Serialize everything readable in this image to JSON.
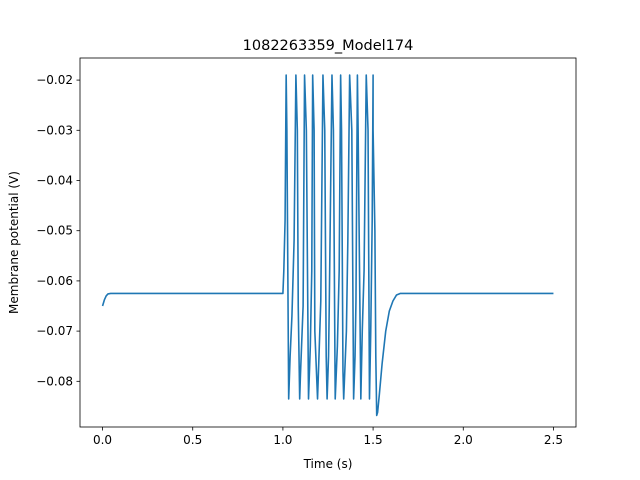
{
  "chart_data": {
    "type": "line",
    "title": "1082263359_Model174",
    "xlabel": "Time (s)",
    "ylabel": "Membrane potential (V)",
    "xlim": [
      -0.125,
      2.625
    ],
    "ylim": [
      -0.0891,
      -0.0156
    ],
    "xticks": [
      0.0,
      0.5,
      1.0,
      1.5,
      2.0,
      2.5
    ],
    "xtick_labels": [
      "0.0",
      "0.5",
      "1.0",
      "1.5",
      "2.0",
      "2.5"
    ],
    "yticks": [
      -0.08,
      -0.07,
      -0.06,
      -0.05,
      -0.04,
      -0.03,
      -0.02
    ],
    "ytick_labels": [
      "−0.08",
      "−0.07",
      "−0.06",
      "−0.05",
      "−0.04",
      "−0.03",
      "−0.02"
    ],
    "grid": false,
    "line_color": "#1f77b4",
    "series": [
      {
        "x": [
          0.0,
          0.01,
          0.02,
          0.03,
          0.045,
          0.06,
          0.1,
          0.5,
          1.0,
          1.005,
          1.012,
          1.018,
          1.022,
          1.032,
          1.04,
          1.05,
          1.062,
          1.072,
          1.08,
          1.085,
          1.093,
          1.097,
          1.112,
          1.12,
          1.13,
          1.142,
          1.152,
          1.16,
          1.165,
          1.173,
          1.177,
          1.192,
          1.2,
          1.21,
          1.222,
          1.232,
          1.24,
          1.245,
          1.253,
          1.257,
          1.272,
          1.28,
          1.29,
          1.302,
          1.312,
          1.32,
          1.325,
          1.333,
          1.337,
          1.352,
          1.36,
          1.37,
          1.382,
          1.392,
          1.4,
          1.405,
          1.413,
          1.417,
          1.432,
          1.44,
          1.45,
          1.462,
          1.472,
          1.48,
          1.487,
          1.495,
          1.5,
          1.5,
          1.51,
          1.515,
          1.52,
          1.525,
          1.535,
          1.55,
          1.57,
          1.59,
          1.61,
          1.63,
          1.65,
          1.7,
          2.0,
          2.5
        ],
        "y": [
          -0.065,
          -0.0638,
          -0.063,
          -0.0626,
          -0.0625,
          -0.0625,
          -0.0625,
          -0.0625,
          -0.0625,
          -0.058,
          -0.048,
          -0.019,
          -0.03,
          -0.0835,
          -0.075,
          -0.067,
          -0.052,
          -0.019,
          -0.03,
          -0.065,
          -0.0835,
          -0.079,
          -0.065,
          -0.019,
          -0.03,
          -0.0835,
          -0.073,
          -0.058,
          -0.019,
          -0.03,
          -0.07,
          -0.0835,
          -0.075,
          -0.064,
          -0.019,
          -0.03,
          -0.075,
          -0.0835,
          -0.075,
          -0.065,
          -0.019,
          -0.03,
          -0.0835,
          -0.073,
          -0.058,
          -0.019,
          -0.03,
          -0.078,
          -0.0835,
          -0.07,
          -0.052,
          -0.019,
          -0.03,
          -0.0835,
          -0.075,
          -0.064,
          -0.019,
          -0.03,
          -0.0835,
          -0.07,
          -0.058,
          -0.019,
          -0.03,
          -0.0835,
          -0.07,
          -0.048,
          -0.019,
          -0.03,
          -0.05,
          -0.075,
          -0.0868,
          -0.0862,
          -0.0825,
          -0.0765,
          -0.07,
          -0.066,
          -0.064,
          -0.0628,
          -0.0625,
          -0.0625,
          -0.0625,
          -0.0625
        ]
      }
    ]
  }
}
